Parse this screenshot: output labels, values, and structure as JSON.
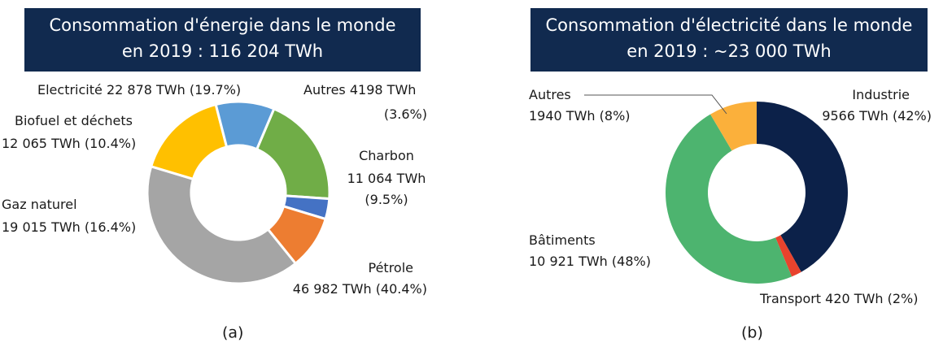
{
  "chart_data": [
    {
      "type": "donut",
      "title": [
        "Consommation d'énergie dans le monde",
        "en 2019 : 116 204 TWh"
      ],
      "categories": [
        "Electricité",
        "Autres",
        "Charbon",
        "Pétrole",
        "Gaz naturel",
        "Biofuel et déchets"
      ],
      "values": [
        22878,
        4198,
        11064,
        46982,
        19015,
        12065
      ],
      "value_labels": [
        "22 878 TWh",
        "4198 TWh",
        "11 064 TWh",
        "46 982 TWh",
        "19 015 TWh",
        "12 065 TWh"
      ],
      "share_labels": [
        "(19.7%)",
        "(3.6%)",
        "(9.5%)",
        "(40.4%)",
        "(16.4%)",
        "(10.4%)"
      ],
      "colors": [
        "#70ad47",
        "#4472c4",
        "#ed7d31",
        "#a5a5a5",
        "#ffc000",
        "#5b9bd5"
      ],
      "caption": "(a)"
    },
    {
      "type": "donut",
      "title": [
        "Consommation d'électricité dans le monde",
        "en 2019 : ~23 000 TWh"
      ],
      "categories": [
        "Industrie",
        "Transport",
        "Bâtiments",
        "Autres"
      ],
      "values": [
        9566,
        420,
        10921,
        1940
      ],
      "value_labels": [
        "9566 TWh",
        "420 TWh",
        "10 921 TWh",
        "1940 TWh"
      ],
      "share_labels": [
        "(42%)",
        "(2%)",
        "(48%)",
        "(8%)"
      ],
      "colors": [
        "#0c2149",
        "#e8432d",
        "#4db46f",
        "#fbb03b"
      ],
      "caption": "(b)"
    }
  ]
}
